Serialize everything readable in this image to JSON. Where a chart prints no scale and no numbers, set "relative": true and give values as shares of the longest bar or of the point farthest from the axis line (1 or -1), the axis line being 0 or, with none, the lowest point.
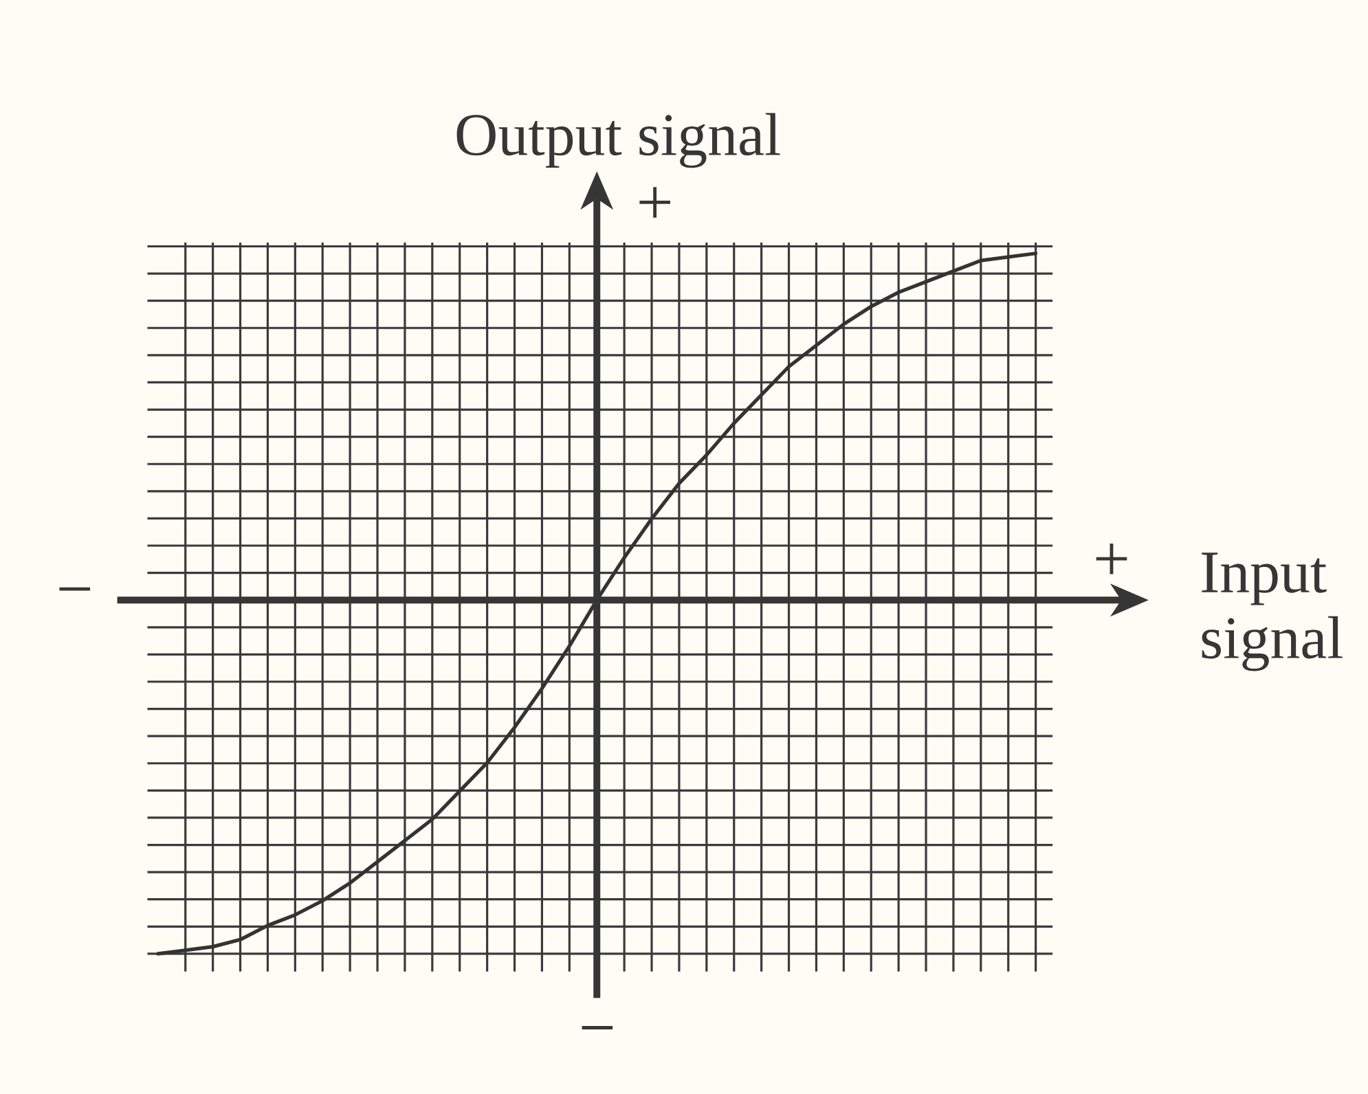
{
  "chart_data": {
    "type": "line",
    "xlabel": "Input signal",
    "ylabel": "Output signal",
    "annotations": [
      "+",
      "−",
      "+",
      "−"
    ],
    "categories": [
      null,
      null,
      null,
      null,
      null,
      null,
      null,
      null,
      null,
      null,
      null,
      null,
      null,
      null,
      null,
      null,
      null,
      null,
      null,
      null,
      null,
      null,
      null,
      null,
      null,
      null,
      null,
      null,
      null,
      null,
      null,
      null,
      null
    ],
    "values": [
      -1.0,
      -0.99,
      -0.98,
      -0.96,
      -0.92,
      -0.89,
      -0.85,
      -0.8,
      -0.74,
      -0.68,
      -0.62,
      -0.54,
      -0.46,
      -0.36,
      -0.25,
      -0.13,
      0,
      0.12,
      0.23,
      0.33,
      0.41,
      0.5,
      0.58,
      0.66,
      0.72,
      0.78,
      0.83,
      0.87,
      0.9,
      0.93,
      0.96,
      0.97,
      0.98
    ],
    "color": "#333333",
    "relative": true,
    "grid": true
  }
}
